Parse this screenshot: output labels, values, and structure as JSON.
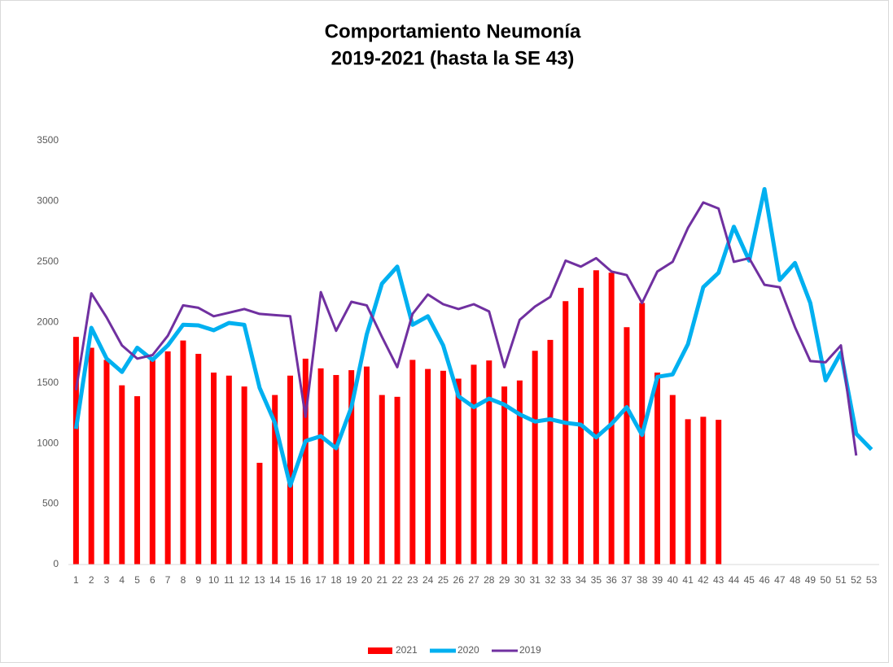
{
  "chart_data": {
    "type": "bar_line",
    "title": "Comportamiento Neumonía",
    "subtitle": "2019-2021 (hasta la SE 43)",
    "categories": [
      "1",
      "2",
      "3",
      "4",
      "5",
      "6",
      "7",
      "8",
      "9",
      "10",
      "11",
      "12",
      "13",
      "14",
      "15",
      "16",
      "17",
      "18",
      "19",
      "20",
      "21",
      "22",
      "23",
      "24",
      "25",
      "26",
      "27",
      "28",
      "29",
      "30",
      "31",
      "32",
      "33",
      "34",
      "35",
      "36",
      "37",
      "38",
      "39",
      "40",
      "41",
      "42",
      "43",
      "44",
      "45",
      "46",
      "47",
      "48",
      "49",
      "50",
      "51",
      "52",
      "53"
    ],
    "series": [
      {
        "name": "2021",
        "type": "bar",
        "color": "#ff0000",
        "values": [
          1880,
          1790,
          1690,
          1480,
          1390,
          1700,
          1760,
          1850,
          1740,
          1585,
          1560,
          1470,
          840,
          1400,
          1560,
          1700,
          1620,
          1565,
          1605,
          1635,
          1400,
          1385,
          1690,
          1615,
          1600,
          1535,
          1650,
          1685,
          1470,
          1520,
          1765,
          1855,
          2175,
          2285,
          2430,
          2410,
          1960,
          2160,
          1585,
          1400,
          1200,
          1220,
          1195,
          null,
          null,
          null,
          null,
          null,
          null,
          null,
          null,
          null,
          null
        ]
      },
      {
        "name": "2020",
        "type": "line",
        "color": "#00b0f0",
        "values": [
          1120,
          1955,
          1700,
          1590,
          1790,
          1690,
          1810,
          1980,
          1975,
          1935,
          1995,
          1980,
          1460,
          1170,
          650,
          1020,
          1060,
          960,
          1300,
          1900,
          2320,
          2460,
          1980,
          2050,
          1810,
          1390,
          1300,
          1370,
          1320,
          1240,
          1180,
          1200,
          1170,
          1155,
          1050,
          1160,
          1300,
          1070,
          1550,
          1570,
          1820,
          2290,
          2410,
          2790,
          2510,
          3100,
          2350,
          2490,
          2160,
          1520,
          1750,
          1080,
          950
        ]
      },
      {
        "name": "2019",
        "type": "line",
        "color": "#7030a0",
        "values": [
          1440,
          2240,
          2040,
          1810,
          1700,
          1730,
          1890,
          2140,
          2120,
          2050,
          2080,
          2110,
          2070,
          2060,
          2050,
          1220,
          2250,
          1930,
          2170,
          2140,
          1880,
          1630,
          2070,
          2230,
          2150,
          2110,
          2150,
          2090,
          1630,
          2020,
          2130,
          2210,
          2510,
          2460,
          2530,
          2420,
          2390,
          2160,
          2420,
          2500,
          2780,
          2990,
          2940,
          2500,
          2530,
          2310,
          2290,
          1960,
          1680,
          1670,
          1810,
          900,
          null
        ]
      }
    ],
    "ylim": [
      0,
      3500
    ],
    "yticks": [
      0,
      500,
      1000,
      1500,
      2000,
      2500,
      3000,
      3500
    ],
    "grid": false,
    "legend": "bottom"
  }
}
